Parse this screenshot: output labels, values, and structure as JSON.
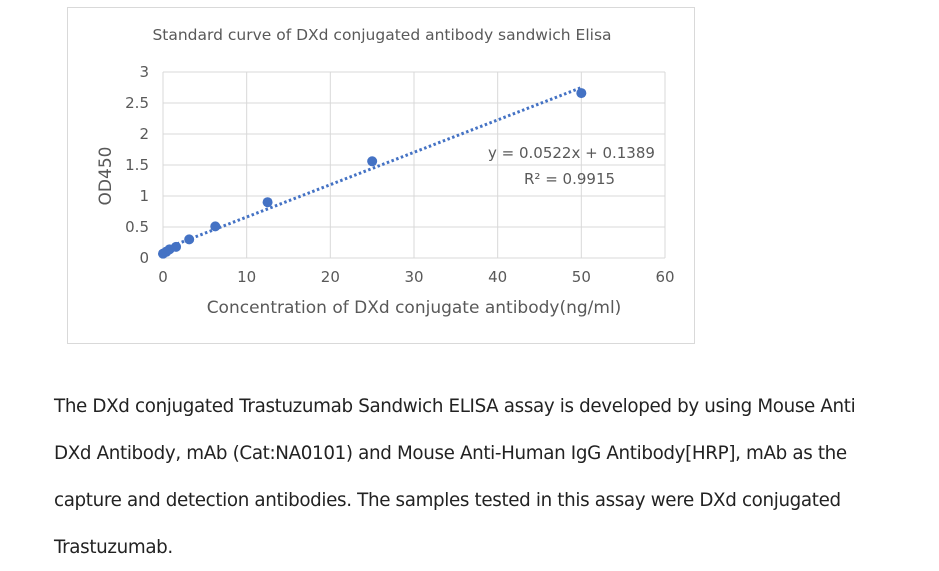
{
  "chart_data": {
    "type": "scatter",
    "title": "Standard curve of DXd conjugated antibody sandwich Elisa",
    "xlabel": "Concentration of DXd conjugate antibody(ng/ml)",
    "ylabel": "OD450",
    "xlim": [
      0,
      60
    ],
    "ylim": [
      0,
      3
    ],
    "x_ticks": [
      0,
      10,
      20,
      30,
      40,
      50,
      60
    ],
    "x_tick_labels": [
      "0",
      "10",
      "20",
      "30",
      "40",
      "50",
      "60"
    ],
    "y_ticks": [
      0,
      0.5,
      1,
      1.5,
      2,
      2.5,
      3
    ],
    "y_tick_labels": [
      "0",
      "0.5",
      "1",
      "1.5",
      "2",
      "2.5",
      "3"
    ],
    "grid": true,
    "series": [
      {
        "color": "#4472c4",
        "x": [
          0,
          0.39,
          0.78,
          1.56,
          3.13,
          6.25,
          12.5,
          25,
          50
        ],
        "y": [
          0.07,
          0.1,
          0.14,
          0.18,
          0.3,
          0.51,
          0.9,
          1.56,
          2.66
        ]
      }
    ],
    "trendline": {
      "type": "linear",
      "slope": 0.0522,
      "intercept": 0.1389,
      "x_range": [
        0,
        50
      ],
      "style": "dotted",
      "equation_text": "y = 0.0522x + 0.1389",
      "r2_text": "R² = 0.9915"
    }
  },
  "description": {
    "text": "The DXd conjugated Trastuzumab Sandwich ELISA assay is developed by using Mouse Anti DXd Antibody, mAb (Cat:NA0101) and Mouse Anti-Human IgG Antibody[HRP], mAb as the capture and detection antibodies. The samples tested in this assay were DXd conjugated Trastuzumab."
  }
}
